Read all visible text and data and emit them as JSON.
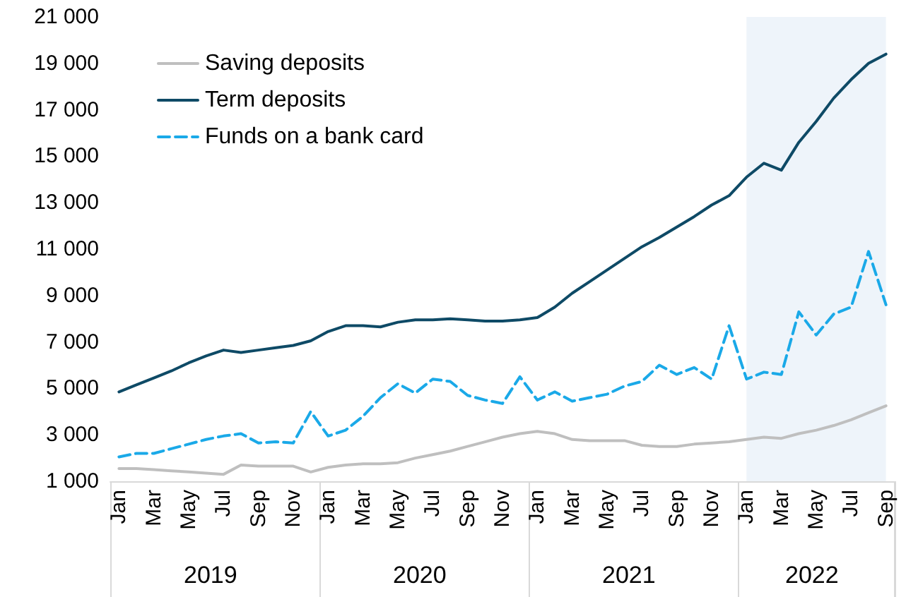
{
  "chart_data": {
    "type": "line",
    "x": [
      "2019-01",
      "2019-02",
      "2019-03",
      "2019-04",
      "2019-05",
      "2019-06",
      "2019-07",
      "2019-08",
      "2019-09",
      "2019-10",
      "2019-11",
      "2019-12",
      "2020-01",
      "2020-02",
      "2020-03",
      "2020-04",
      "2020-05",
      "2020-06",
      "2020-07",
      "2020-08",
      "2020-09",
      "2020-10",
      "2020-11",
      "2020-12",
      "2021-01",
      "2021-02",
      "2021-03",
      "2021-04",
      "2021-05",
      "2021-06",
      "2021-07",
      "2021-08",
      "2021-09",
      "2021-10",
      "2021-11",
      "2021-12",
      "2022-01",
      "2022-02",
      "2022-03",
      "2022-04",
      "2022-05",
      "2022-06",
      "2022-07",
      "2022-08",
      "2022-09"
    ],
    "series": [
      {
        "name": "Saving deposits",
        "color": "#bfbfbf",
        "values": [
          1550,
          1550,
          1500,
          1450,
          1400,
          1350,
          1300,
          1700,
          1650,
          1650,
          1650,
          1400,
          1600,
          1700,
          1750,
          1750,
          1800,
          2000,
          2150,
          2300,
          2500,
          2700,
          2900,
          3050,
          3150,
          3050,
          2800,
          2750,
          2750,
          2750,
          2550,
          2500,
          2500,
          2600,
          2650,
          2700,
          2800,
          2900,
          2850,
          3050,
          3200,
          3400,
          3650,
          3950,
          4250
        ]
      },
      {
        "name": "Term deposits",
        "color": "#0e4a66",
        "values": [
          4850,
          5150,
          5450,
          5750,
          6100,
          6400,
          6650,
          6550,
          6650,
          6750,
          6850,
          7050,
          7450,
          7700,
          7700,
          7650,
          7850,
          7950,
          7950,
          8000,
          7950,
          7900,
          7900,
          7950,
          8050,
          8500,
          9100,
          9600,
          10100,
          10600,
          11100,
          11500,
          11950,
          12400,
          12900,
          13300,
          14100,
          14700,
          14400,
          15600,
          16500,
          17500,
          18300,
          19000,
          19400
        ]
      },
      {
        "name": "Funds on a bank card",
        "color": "#1aa9e8",
        "line_style": "dashed",
        "values": [
          2050,
          2200,
          2200,
          2400,
          2600,
          2800,
          2950,
          3050,
          2650,
          2700,
          2650,
          4000,
          2950,
          3200,
          3800,
          4600,
          5200,
          4800,
          5400,
          5300,
          4700,
          4500,
          4350,
          5500,
          4500,
          4850,
          4450,
          4600,
          4750,
          5100,
          5300,
          6000,
          5600,
          5900,
          5400,
          7700,
          5400,
          5700,
          5600,
          8300,
          7300,
          8200,
          8500,
          10900,
          8600
        ]
      }
    ],
    "xlim": [
      "2018-12-15",
      "2022-09-15"
    ],
    "ylim": [
      1000,
      21000
    ],
    "yticks": [
      {
        "value": 1000,
        "label": "1 000"
      },
      {
        "value": 3000,
        "label": "3 000"
      },
      {
        "value": 5000,
        "label": "5 000"
      },
      {
        "value": 7000,
        "label": "7 000"
      },
      {
        "value": 9000,
        "label": "9 000"
      },
      {
        "value": 11000,
        "label": "11 000"
      },
      {
        "value": 13000,
        "label": "13 000"
      },
      {
        "value": 15000,
        "label": "15 000"
      },
      {
        "value": 17000,
        "label": "17 000"
      },
      {
        "value": 19000,
        "label": "19 000"
      },
      {
        "value": 21000,
        "label": "21 000"
      }
    ],
    "xticks": [
      {
        "value": "2019-01",
        "label": "Jan"
      },
      {
        "value": "2019-03",
        "label": "Mar"
      },
      {
        "value": "2019-05",
        "label": "May"
      },
      {
        "value": "2019-07",
        "label": "Jul"
      },
      {
        "value": "2019-09",
        "label": "Sep"
      },
      {
        "value": "2019-11",
        "label": "Nov"
      },
      {
        "value": "2020-01",
        "label": "Jan"
      },
      {
        "value": "2020-03",
        "label": "Mar"
      },
      {
        "value": "2020-05",
        "label": "May"
      },
      {
        "value": "2020-07",
        "label": "Jul"
      },
      {
        "value": "2020-09",
        "label": "Sep"
      },
      {
        "value": "2020-11",
        "label": "Nov"
      },
      {
        "value": "2021-01",
        "label": "Jan"
      },
      {
        "value": "2021-03",
        "label": "Mar"
      },
      {
        "value": "2021-05",
        "label": "May"
      },
      {
        "value": "2021-07",
        "label": "Jul"
      },
      {
        "value": "2021-09",
        "label": "Sep"
      },
      {
        "value": "2021-11",
        "label": "Nov"
      },
      {
        "value": "2022-01",
        "label": "Jan"
      },
      {
        "value": "2022-03",
        "label": "Mar"
      },
      {
        "value": "2022-05",
        "label": "May"
      },
      {
        "value": "2022-07",
        "label": "Jul"
      },
      {
        "value": "2022-09",
        "label": "Sep"
      }
    ],
    "bands": [
      {
        "axis": "x",
        "from": "2022-01",
        "to": "2022-09",
        "color": "#eef4fa"
      }
    ],
    "annotations": [
      "2019",
      "2020",
      "2021",
      "2022"
    ],
    "legend": "top left",
    "grid": false,
    "marker": "none",
    "line_style": "solid"
  }
}
